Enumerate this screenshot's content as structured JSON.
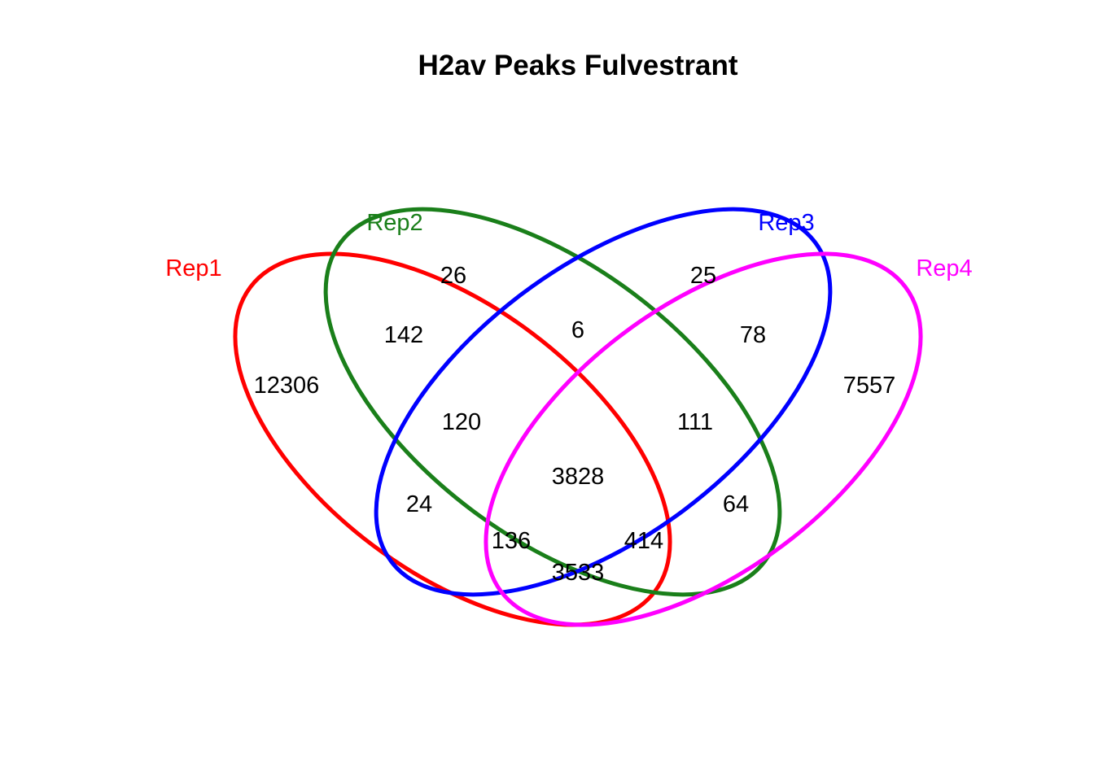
{
  "title": "H2av Peaks Fulvestrant",
  "sets": [
    {
      "label": "Rep1",
      "color": "#ff0000"
    },
    {
      "label": "Rep2",
      "color": "#1a7f1a"
    },
    {
      "label": "Rep3",
      "color": "#0000ff"
    },
    {
      "label": "Rep4",
      "color": "#ff00ff"
    }
  ],
  "regions": {
    "rep1_only": "12306",
    "rep2_only": "26",
    "rep3_only": "25",
    "rep4_only": "7557",
    "rep1_rep2": "142",
    "rep2_rep3": "6",
    "rep3_rep4": "78",
    "rep1_rep2_rep3": "120",
    "rep2_rep3_rep4": "111",
    "rep1_rep3": "24",
    "rep2_rep4": "64",
    "rep1_rep2_rep3_rep4": "3828",
    "rep1_rep3_rep4": "136",
    "rep1_rep2_rep4": "414",
    "rep1_rep4": "3533"
  }
}
